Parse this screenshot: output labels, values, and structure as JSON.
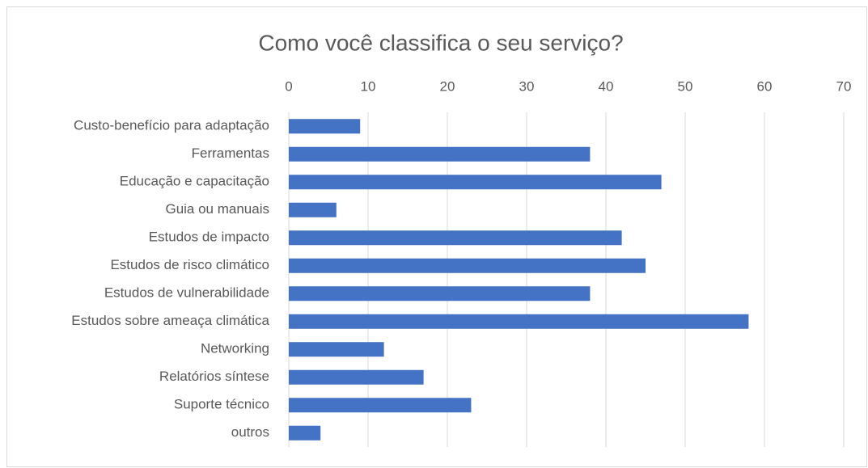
{
  "chart_data": {
    "type": "bar",
    "orientation": "horizontal",
    "title": "Como você classifica o seu serviço?",
    "categories": [
      "Custo-benefício para adaptação",
      "Ferramentas",
      "Educação e capacitação",
      "Guia ou manuais",
      "Estudos de impacto",
      "Estudos de risco climático",
      "Estudos de vulnerabilidade",
      "Estudos sobre ameaça climática",
      "Networking",
      "Relatórios síntese",
      "Suporte técnico",
      "outros"
    ],
    "values": [
      9,
      38,
      47,
      6,
      42,
      45,
      38,
      58,
      12,
      17,
      23,
      4
    ],
    "color": "#4472c4",
    "xlim": [
      0,
      70
    ],
    "xticks": [
      0,
      10,
      20,
      30,
      40,
      50,
      60,
      70
    ],
    "grid": true
  }
}
